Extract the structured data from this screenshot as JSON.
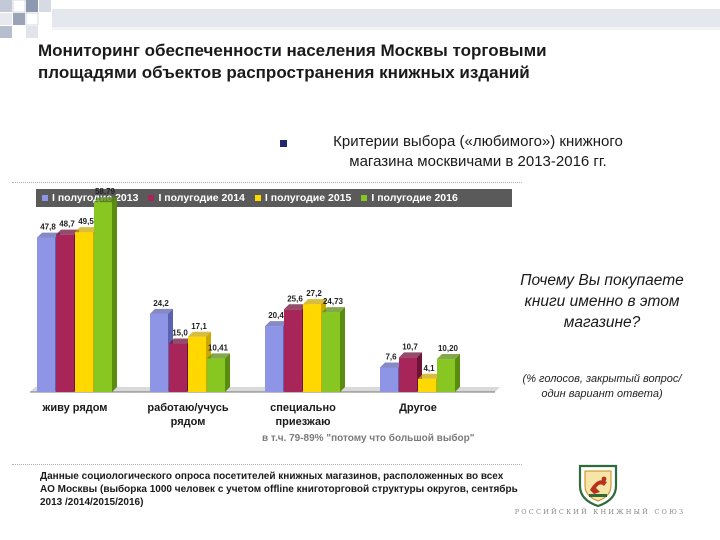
{
  "header": {
    "title_line1": "Мониторинг обеспеченности населения Москвы торговыми",
    "title_line2": "площадями объектов распространения книжных изданий"
  },
  "subtitle": {
    "line1": "Критерии выбора («любимого») книжного",
    "line2": "магазина москвичами в 2013-2016 гг."
  },
  "chart_data": {
    "type": "bar",
    "categories": [
      [
        "живу рядом"
      ],
      [
        "работаю/учусь",
        "рядом"
      ],
      [
        "специально",
        "приезжаю"
      ],
      [
        "Другое"
      ]
    ],
    "series": [
      {
        "name": "I полугодие 2013",
        "values": [
          47.8,
          24.2,
          20.4,
          7.6
        ],
        "labels": [
          "47,8",
          "24,2",
          "20,4",
          "7,6"
        ]
      },
      {
        "name": "I полугодие 2014",
        "values": [
          48.7,
          15.0,
          25.6,
          10.7
        ],
        "labels": [
          "48,7",
          "15,0",
          "25,6",
          "10,7"
        ]
      },
      {
        "name": "I полугодие 2015",
        "values": [
          49.5,
          17.1,
          27.2,
          4.1
        ],
        "labels": [
          "49,5",
          "17,1",
          "27,2",
          "4,1"
        ]
      },
      {
        "name": "I полугодие 2016",
        "values": [
          58.79,
          10.41,
          24.73,
          10.2
        ],
        "labels": [
          "58,79",
          "10,41",
          "24,73",
          "10,20"
        ]
      }
    ],
    "ylim": [
      0,
      65
    ],
    "legend_position": "top",
    "annotation": "в т.ч. 79-89% \"потому что большой выбор\"",
    "grid": false
  },
  "colors": {
    "series": [
      "#8f95e6",
      "#a8255a",
      "#ffd800",
      "#88c622"
    ],
    "series_dark": [
      "#5c61b0",
      "#6e1238",
      "#c9a800",
      "#5a8c10"
    ],
    "legend_bg": "#5a5a5a",
    "annotation": "#7a7a7a",
    "deco": "#9aa3b8"
  },
  "question": {
    "text": "Почему Вы покупаете книги именно в этом магазине?",
    "note": "(% голосов, закрытый вопрос/ один вариант ответа)"
  },
  "source": {
    "text": "Данные социологического опроса посетителей книжных магазинов, расположенных во всех АО Москвы (выборка 1000 человек с учетом offline книготорговой структуры округов, сентябрь 2013 /2014/2015/2016)"
  },
  "logo": {
    "text": "РОССИЙСКИЙ КНИЖНЫЙ СОЮЗ"
  }
}
